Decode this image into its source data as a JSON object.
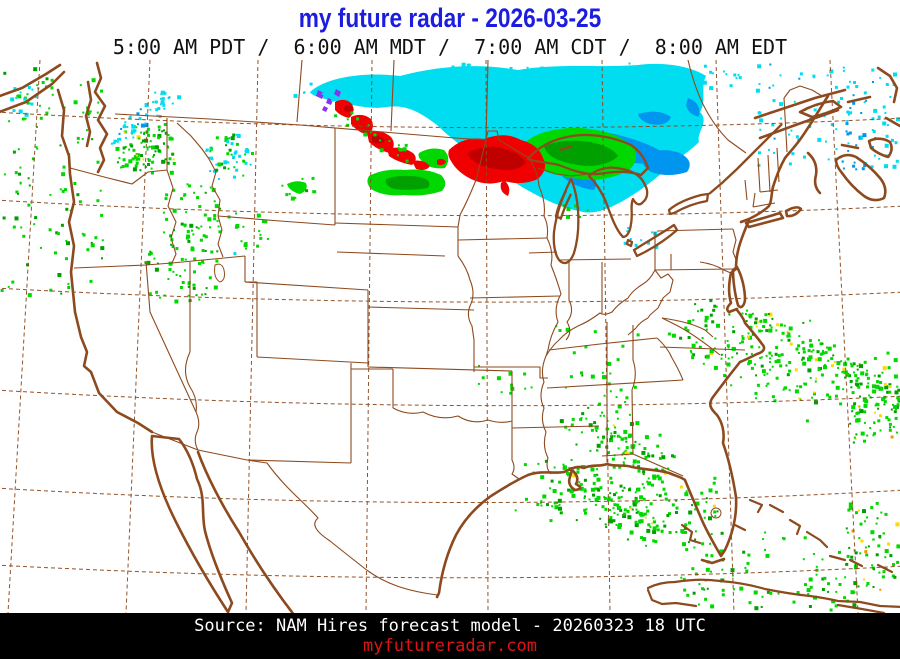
{
  "header": {
    "title": "my future radar - 2026-03-25",
    "subtitle": "5:00 AM PDT /  6:00 AM MDT /  7:00 AM CDT /  8:00 AM EDT"
  },
  "footer": {
    "source": "Source: NAM Hires forecast model - 20260323 18 UTC",
    "site": "myfutureradar.com"
  },
  "colors": {
    "title": "#1d1de0",
    "line": "#8d4a1e",
    "footer_bg": "#000000",
    "footer_text": "#ffffff",
    "site": "#e01212",
    "precip": {
      "light_rain": "#00d800",
      "heavy_rain": "#00a000",
      "snow": "#00dcf0",
      "heavy_snow": "#0096f0",
      "mix": "#f00000",
      "heavy_mix": "#c00000",
      "ice": "#8833ee",
      "hail_yellow": "#ffd800",
      "hail_orange": "#ff9000"
    }
  }
}
